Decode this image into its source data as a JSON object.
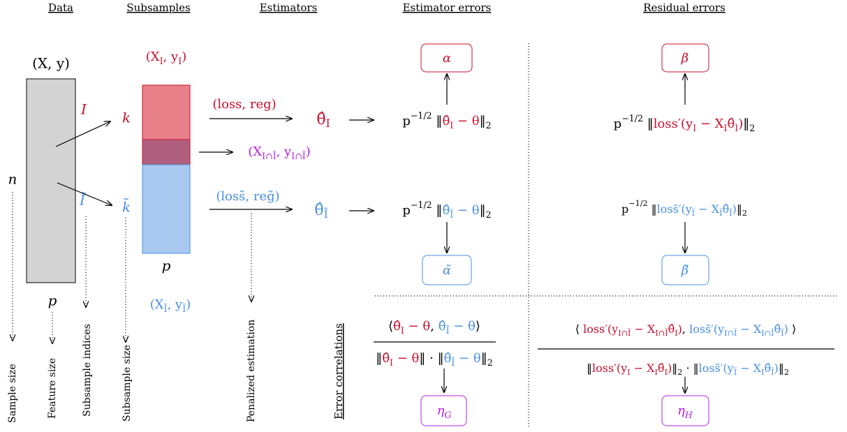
{
  "headers": {
    "data": "Data",
    "subsamples": "Subsamples",
    "estimators": "Estimators",
    "estimator_errors": "Estimator errors",
    "residual_errors": "Residual errors"
  },
  "data_matrix": {
    "label": "(X, y)",
    "n": "n",
    "p": "p",
    "I": "I",
    "I_tilde": "Ĩ"
  },
  "subsamples": {
    "k": "k",
    "k_tilde": "k̃",
    "p": "p",
    "XI": [
      {
        "text": "(X",
        "color": "#c8102e"
      },
      {
        "text": "I",
        "color": "#c8102e",
        "sub": true
      },
      {
        "text": ", y",
        "color": "#c8102e"
      },
      {
        "text": "I",
        "color": "#c8102e",
        "sub": true
      },
      {
        "text": ")",
        "color": "#c8102e"
      }
    ],
    "Xinter": [
      {
        "text": "(X",
        "color": "#b620e0"
      },
      {
        "text": "I∩Ĩ",
        "color": "#b620e0",
        "sub": true
      },
      {
        "text": ", y",
        "color": "#b620e0"
      },
      {
        "text": "I∩Ĩ",
        "color": "#b620e0",
        "sub": true
      },
      {
        "text": ")",
        "color": "#b620e0"
      }
    ],
    "Xtilde": [
      {
        "text": "(X",
        "color": "#4a90e2"
      },
      {
        "text": "Ĩ",
        "color": "#4a90e2",
        "sub": true
      },
      {
        "text": ", y",
        "color": "#4a90e2"
      },
      {
        "text": "Ĩ",
        "color": "#4a90e2",
        "sub": true
      },
      {
        "text": ")",
        "color": "#4a90e2"
      }
    ]
  },
  "estimators": {
    "loss_reg": [
      {
        "text": "(loss, reg)",
        "color": "#c8102e"
      }
    ],
    "loss_reg_tilde": [
      {
        "text": "(loss̃, reg̃)",
        "color": "#4a90e2"
      }
    ],
    "theta_I": [
      {
        "text": "θ̂",
        "color": "#c8102e"
      },
      {
        "text": "I",
        "color": "#c8102e",
        "sub": true
      }
    ],
    "theta_tilde": [
      {
        "text": "θ̂",
        "color": "#4a90e2"
      },
      {
        "text": "Ĩ",
        "color": "#4a90e2",
        "sub": true
      }
    ]
  },
  "estimator_errors": {
    "err_I": [
      {
        "text": "p"
      },
      {
        "text": "−1/2",
        "sup": true
      },
      {
        "text": " ‖"
      },
      {
        "text": "θ̂",
        "color": "#c8102e"
      },
      {
        "text": "I",
        "color": "#c8102e",
        "sub": true
      },
      {
        "text": " − θ",
        "color": "#c8102e"
      },
      {
        "text": "‖"
      },
      {
        "text": "2",
        "sub": true
      }
    ],
    "err_tilde": [
      {
        "text": "p"
      },
      {
        "text": "−1/2",
        "sup": true
      },
      {
        "text": " ‖"
      },
      {
        "text": "θ̂",
        "color": "#4a90e2"
      },
      {
        "text": "Ĩ",
        "color": "#4a90e2",
        "sub": true
      },
      {
        "text": " − θ",
        "color": "#4a90e2"
      },
      {
        "text": "‖"
      },
      {
        "text": "2",
        "sub": true
      }
    ],
    "alpha": [
      {
        "text": "α",
        "color": "#c8102e"
      }
    ],
    "alpha_tilde": [
      {
        "text": "α̃",
        "color": "#4a90e2"
      }
    ],
    "corr_num": [
      {
        "text": "⟨"
      },
      {
        "text": "θ̂",
        "color": "#c8102e"
      },
      {
        "text": "I",
        "color": "#c8102e",
        "sub": true
      },
      {
        "text": " − θ",
        "color": "#c8102e"
      },
      {
        "text": ", "
      },
      {
        "text": "θ̂",
        "color": "#4a90e2"
      },
      {
        "text": "Ĩ",
        "color": "#4a90e2",
        "sub": true
      },
      {
        "text": " − θ",
        "color": "#4a90e2"
      },
      {
        "text": "⟩"
      }
    ],
    "corr_den": [
      {
        "text": "‖"
      },
      {
        "text": "θ̂",
        "color": "#c8102e"
      },
      {
        "text": "I",
        "color": "#c8102e",
        "sub": true
      },
      {
        "text": " − θ",
        "color": "#c8102e"
      },
      {
        "text": "‖ · ‖"
      },
      {
        "text": "θ̂",
        "color": "#4a90e2"
      },
      {
        "text": "Ĩ",
        "color": "#4a90e2",
        "sub": true
      },
      {
        "text": " − θ",
        "color": "#4a90e2"
      },
      {
        "text": "‖"
      },
      {
        "text": "2",
        "sub": true
      }
    ],
    "eta_G": [
      {
        "text": "η",
        "color": "#b620e0"
      },
      {
        "text": "G",
        "color": "#b620e0",
        "sub": true
      }
    ]
  },
  "residual_errors": {
    "res_I": [
      {
        "text": "p"
      },
      {
        "text": "−1/2",
        "sup": true
      },
      {
        "text": " ‖"
      },
      {
        "text": "loss′(y",
        "color": "#c8102e"
      },
      {
        "text": "I",
        "color": "#c8102e",
        "sub": true
      },
      {
        "text": " − X",
        "color": "#c8102e"
      },
      {
        "text": "I",
        "color": "#c8102e",
        "sub": true
      },
      {
        "text": "θ̂",
        "color": "#c8102e"
      },
      {
        "text": "I",
        "color": "#c8102e",
        "sub": true
      },
      {
        "text": ")",
        "color": "#c8102e"
      },
      {
        "text": "‖"
      },
      {
        "text": "2",
        "sub": true
      }
    ],
    "res_tilde": [
      {
        "text": "p"
      },
      {
        "text": "−1/2",
        "sup": true
      },
      {
        "text": " ‖"
      },
      {
        "text": "loss̃′(y",
        "color": "#4a90e2"
      },
      {
        "text": "Ĩ",
        "color": "#4a90e2",
        "sub": true
      },
      {
        "text": " − X",
        "color": "#4a90e2"
      },
      {
        "text": "Ĩ",
        "color": "#4a90e2",
        "sub": true
      },
      {
        "text": "θ̂",
        "color": "#4a90e2"
      },
      {
        "text": "Ĩ",
        "color": "#4a90e2",
        "sub": true
      },
      {
        "text": ")",
        "color": "#4a90e2"
      },
      {
        "text": "‖"
      },
      {
        "text": "2",
        "sub": true
      }
    ],
    "beta": [
      {
        "text": "β",
        "color": "#c8102e"
      }
    ],
    "beta_tilde": [
      {
        "text": "β̃",
        "color": "#4a90e2"
      }
    ],
    "res_num": [
      {
        "text": "⟨ "
      },
      {
        "text": "loss′(y",
        "color": "#c8102e"
      },
      {
        "text": "I∩Ĩ",
        "color": "#c8102e",
        "sub": true
      },
      {
        "text": " − X",
        "color": "#c8102e"
      },
      {
        "text": "I∩Ĩ",
        "color": "#c8102e",
        "sub": true
      },
      {
        "text": "θ̂",
        "color": "#c8102e"
      },
      {
        "text": "I",
        "color": "#c8102e",
        "sub": true
      },
      {
        "text": ")",
        "color": "#c8102e"
      },
      {
        "text": ", "
      },
      {
        "text": "loss̃′(y",
        "color": "#4a90e2"
      },
      {
        "text": "I∩Ĩ",
        "color": "#4a90e2",
        "sub": true
      },
      {
        "text": " − X",
        "color": "#4a90e2"
      },
      {
        "text": "I∩Ĩ",
        "color": "#4a90e2",
        "sub": true
      },
      {
        "text": "θ̂",
        "color": "#4a90e2"
      },
      {
        "text": "Ĩ",
        "color": "#4a90e2",
        "sub": true
      },
      {
        "text": ")",
        "color": "#4a90e2"
      },
      {
        "text": " ⟩"
      }
    ],
    "res_den": [
      {
        "text": "‖"
      },
      {
        "text": "loss′(y",
        "color": "#c8102e"
      },
      {
        "text": "I",
        "color": "#c8102e",
        "sub": true
      },
      {
        "text": " − X",
        "color": "#c8102e"
      },
      {
        "text": "I",
        "color": "#c8102e",
        "sub": true
      },
      {
        "text": "θ̂",
        "color": "#c8102e"
      },
      {
        "text": "I",
        "color": "#c8102e",
        "sub": true
      },
      {
        "text": ")",
        "color": "#c8102e"
      },
      {
        "text": "‖"
      },
      {
        "text": "2",
        "sub": true
      },
      {
        "text": " · ‖"
      },
      {
        "text": "loss̃′(y",
        "color": "#4a90e2"
      },
      {
        "text": "Ĩ",
        "color": "#4a90e2",
        "sub": true
      },
      {
        "text": " − X",
        "color": "#4a90e2"
      },
      {
        "text": "I",
        "color": "#4a90e2",
        "sub": true
      },
      {
        "text": "θ̂",
        "color": "#4a90e2"
      },
      {
        "text": "Ĩ",
        "color": "#4a90e2",
        "sub": true
      },
      {
        "text": ")",
        "color": "#4a90e2"
      },
      {
        "text": "‖"
      },
      {
        "text": "2",
        "sub": true
      }
    ],
    "eta_H": [
      {
        "text": "η",
        "color": "#b620e0"
      },
      {
        "text": "H",
        "color": "#b620e0",
        "sub": true
      }
    ]
  },
  "axis_labels": {
    "sample_size": "Sample size",
    "feature_size": "Feature size",
    "subsample_indices": "Subsample indices",
    "subsample_size": "Subsample size",
    "penalized_estimation": "Penalized estimation",
    "error_correlations": "Error correlations"
  }
}
